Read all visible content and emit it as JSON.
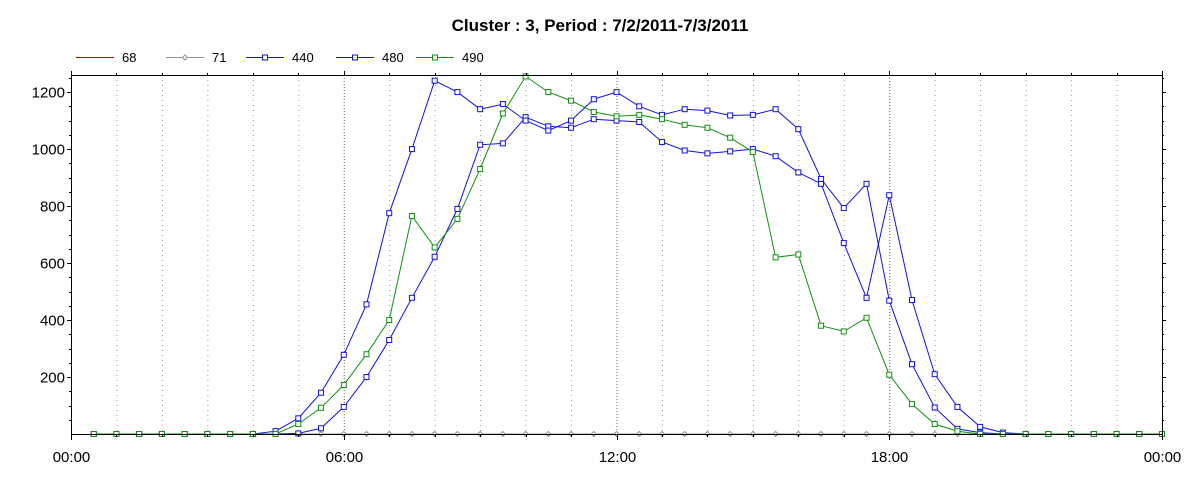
{
  "chart_data": {
    "type": "line",
    "title": "Cluster : 3, Period : 7/2/2011-7/3/2011",
    "xlabel": "",
    "ylabel": "",
    "xlim": [
      "00:00",
      "24:00"
    ],
    "ylim": [
      0,
      1260
    ],
    "x_ticks": [
      "00:00",
      "06:00",
      "12:00",
      "18:00",
      "00:00"
    ],
    "y_ticks": [
      200,
      400,
      600,
      800,
      1000,
      1200
    ],
    "grid": {
      "vertical_dotted": true,
      "horizontal": false
    },
    "legend_position": "top-left",
    "x": [
      "00:30",
      "01:00",
      "01:30",
      "02:00",
      "02:30",
      "03:00",
      "03:30",
      "04:00",
      "04:30",
      "05:00",
      "05:30",
      "06:00",
      "06:30",
      "07:00",
      "07:30",
      "08:00",
      "08:30",
      "09:00",
      "09:30",
      "10:00",
      "10:30",
      "11:00",
      "11:30",
      "12:00",
      "12:30",
      "13:00",
      "13:30",
      "14:00",
      "14:30",
      "15:00",
      "15:30",
      "16:00",
      "16:30",
      "17:00",
      "17:30",
      "18:00",
      "18:30",
      "19:00",
      "19:30",
      "20:00",
      "20:30",
      "21:00",
      "21:30",
      "22:00",
      "22:30",
      "23:00",
      "23:30",
      "24:00"
    ],
    "series": [
      {
        "name": "68",
        "color": "#c00000",
        "marker": "none",
        "values": [
          0,
          0,
          0,
          0,
          0,
          0,
          0,
          0,
          0,
          0,
          0,
          0,
          0,
          0,
          0,
          0,
          0,
          0,
          0,
          0,
          0,
          0,
          0,
          0,
          0,
          0,
          0,
          0,
          0,
          0,
          0,
          0,
          0,
          0,
          0,
          0,
          0,
          0,
          0,
          0,
          0,
          0,
          0,
          0,
          0,
          0,
          0,
          0
        ]
      },
      {
        "name": "71",
        "color": "#909090",
        "marker": "diamond",
        "values": [
          0,
          0,
          0,
          0,
          0,
          0,
          0,
          0,
          0,
          0,
          0,
          0,
          0,
          0,
          0,
          0,
          0,
          0,
          0,
          0,
          0,
          0,
          0,
          0,
          0,
          0,
          0,
          0,
          0,
          0,
          0,
          0,
          0,
          0,
          0,
          0,
          0,
          0,
          0,
          0,
          0,
          0,
          0,
          0,
          0,
          0,
          0,
          0
        ]
      },
      {
        "name": "440",
        "color": "#1010e0",
        "marker": "square",
        "values": [
          0,
          0,
          0,
          0,
          0,
          0,
          0,
          0,
          0,
          2,
          20,
          95,
          200,
          330,
          478,
          622,
          790,
          1015,
          1020,
          1112,
          1080,
          1075,
          1105,
          1100,
          1095,
          1025,
          995,
          985,
          992,
          1000,
          975,
          918,
          878,
          670,
          478,
          838,
          470,
          210,
          95,
          25,
          5,
          0,
          0,
          0,
          0,
          0,
          0,
          0
        ]
      },
      {
        "name": "480",
        "color": "#1010e0",
        "marker": "square",
        "values": [
          0,
          0,
          0,
          0,
          0,
          0,
          0,
          0,
          10,
          55,
          145,
          278,
          455,
          775,
          1000,
          1240,
          1200,
          1140,
          1158,
          1100,
          1065,
          1100,
          1175,
          1200,
          1150,
          1120,
          1140,
          1135,
          1118,
          1120,
          1140,
          1070,
          895,
          793,
          878,
          468,
          245,
          93,
          18,
          5,
          0,
          0,
          0,
          0,
          0,
          0,
          0,
          0
        ]
      },
      {
        "name": "490",
        "color": "#109010",
        "marker": "square",
        "values": [
          0,
          0,
          0,
          0,
          0,
          0,
          0,
          0,
          0,
          35,
          92,
          172,
          280,
          400,
          765,
          655,
          755,
          930,
          1125,
          1255,
          1200,
          1170,
          1130,
          1115,
          1120,
          1105,
          1085,
          1075,
          1040,
          990,
          620,
          630,
          380,
          360,
          408,
          208,
          105,
          35,
          10,
          0,
          0,
          0,
          0,
          0,
          0,
          0,
          0,
          0
        ]
      }
    ]
  }
}
